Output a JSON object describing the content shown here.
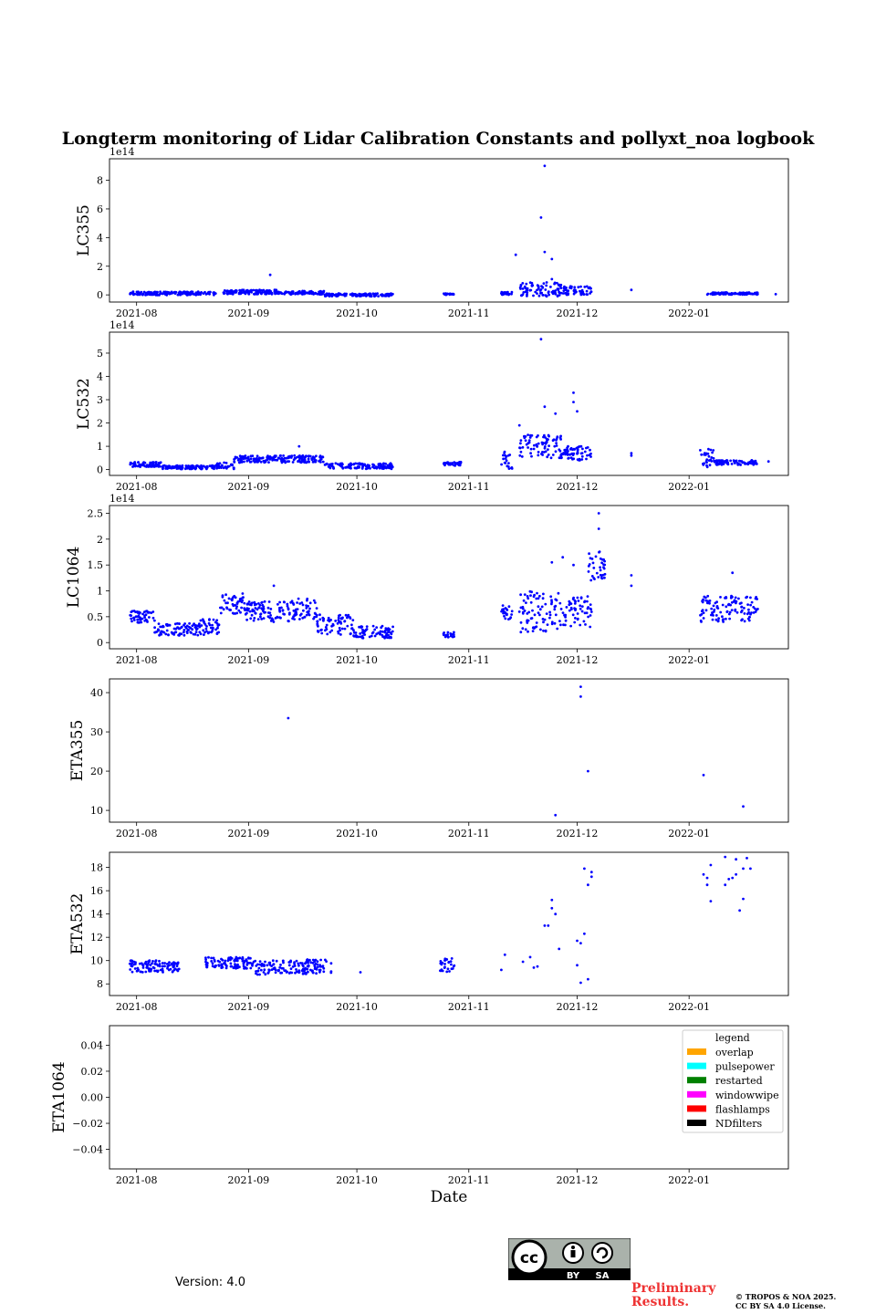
{
  "figure": {
    "title": "Longterm monitoring of Lidar Calibration Constants and pollyxt_noa logbook",
    "xlabel": "Date",
    "version": "Version: 4.0",
    "preliminary": "Preliminary Results.",
    "copyright_line1": "© TROPOS & NOA 2025.",
    "copyright_line2": "CC BY SA 4.0 License.",
    "cc_by": "BY",
    "cc_sa": "SA",
    "cc_text": "cc"
  },
  "colors": {
    "points": "#0000ff",
    "axis": "#000000"
  },
  "chart_data": [
    {
      "type": "scatter",
      "ylabel": "LC355",
      "offset_text": "1e14",
      "x_ticks": [
        "2021-08",
        "2021-09",
        "2021-10",
        "2021-11",
        "2021-12",
        "2022-01"
      ],
      "y_ticks": [
        0,
        2,
        4,
        6,
        8
      ],
      "ylim": [
        -0.5,
        9.5
      ],
      "segments": [
        {
          "start": -2,
          "end": 22,
          "level": 0.1,
          "noise": 0.12
        },
        {
          "start": 24,
          "end": 40,
          "level": 0.2,
          "noise": 0.15
        },
        {
          "start": 40,
          "end": 52,
          "level": 0.15,
          "noise": 0.12
        },
        {
          "start": 52,
          "end": 71,
          "level": 0.0,
          "noise": 0.1
        },
        {
          "start": 85,
          "end": 88,
          "level": 0.05,
          "noise": 0.05
        },
        {
          "start": 101,
          "end": 104,
          "level": 0.1,
          "noise": 0.1
        },
        {
          "start": 106,
          "end": 118,
          "level": 0.4,
          "noise": 0.5
        },
        {
          "start": 118,
          "end": 126,
          "level": 0.3,
          "noise": 0.3
        },
        {
          "start": 158,
          "end": 172,
          "level": 0.1,
          "noise": 0.08
        }
      ],
      "extra_points": [
        [
          37,
          1.4
        ],
        [
          105,
          2.8
        ],
        [
          112,
          5.4
        ],
        [
          113,
          3.0
        ],
        [
          115,
          2.5
        ],
        [
          113,
          9.0
        ],
        [
          115,
          1.1
        ],
        [
          137,
          0.35
        ],
        [
          177,
          0.05
        ]
      ]
    },
    {
      "type": "scatter",
      "ylabel": "LC532",
      "offset_text": "1e14",
      "x_ticks": [
        "2021-08",
        "2021-09",
        "2021-10",
        "2021-11",
        "2021-12",
        "2022-01"
      ],
      "y_ticks": [
        0,
        1,
        2,
        3,
        4,
        5
      ],
      "ylim": [
        -0.25,
        5.9
      ],
      "segments": [
        {
          "start": -2,
          "end": 7,
          "level": 0.22,
          "noise": 0.1
        },
        {
          "start": 7,
          "end": 22,
          "level": 0.1,
          "noise": 0.08
        },
        {
          "start": 22,
          "end": 27,
          "level": 0.15,
          "noise": 0.15
        },
        {
          "start": 27,
          "end": 52,
          "level": 0.45,
          "noise": 0.15
        },
        {
          "start": 52,
          "end": 71,
          "level": 0.15,
          "noise": 0.12
        },
        {
          "start": 85,
          "end": 90,
          "level": 0.25,
          "noise": 0.08
        },
        {
          "start": 101,
          "end": 104,
          "level": 0.4,
          "noise": 0.4
        },
        {
          "start": 106,
          "end": 118,
          "level": 1.0,
          "noise": 0.5
        },
        {
          "start": 118,
          "end": 126,
          "level": 0.7,
          "noise": 0.3
        },
        {
          "start": 156,
          "end": 160,
          "level": 0.5,
          "noise": 0.4
        },
        {
          "start": 160,
          "end": 172,
          "level": 0.3,
          "noise": 0.1
        }
      ],
      "extra_points": [
        [
          112,
          5.6
        ],
        [
          113,
          2.7
        ],
        [
          116,
          2.4
        ],
        [
          106,
          1.9
        ],
        [
          121,
          3.3
        ],
        [
          121,
          2.9
        ],
        [
          122,
          2.5
        ],
        [
          137,
          0.7
        ],
        [
          137,
          0.6
        ],
        [
          45,
          1.0
        ],
        [
          175,
          0.35
        ]
      ]
    },
    {
      "type": "scatter",
      "ylabel": "LC1064",
      "offset_text": "1e14",
      "x_ticks": [
        "2021-08",
        "2021-09",
        "2021-10",
        "2021-11",
        "2021-12",
        "2022-01"
      ],
      "y_ticks": [
        0.0,
        0.5,
        1.0,
        1.5,
        2.0,
        2.5
      ],
      "ylim": [
        -0.12,
        2.65
      ],
      "segments": [
        {
          "start": -2,
          "end": 5,
          "level": 0.5,
          "noise": 0.12
        },
        {
          "start": 5,
          "end": 17,
          "level": 0.25,
          "noise": 0.12
        },
        {
          "start": 17,
          "end": 23,
          "level": 0.3,
          "noise": 0.15
        },
        {
          "start": 23,
          "end": 30,
          "level": 0.75,
          "noise": 0.2
        },
        {
          "start": 30,
          "end": 43,
          "level": 0.6,
          "noise": 0.2
        },
        {
          "start": 43,
          "end": 50,
          "level": 0.65,
          "noise": 0.2
        },
        {
          "start": 50,
          "end": 60,
          "level": 0.35,
          "noise": 0.2
        },
        {
          "start": 60,
          "end": 71,
          "level": 0.2,
          "noise": 0.12
        },
        {
          "start": 85,
          "end": 88,
          "level": 0.15,
          "noise": 0.05
        },
        {
          "start": 101,
          "end": 104,
          "level": 0.6,
          "noise": 0.15
        },
        {
          "start": 106,
          "end": 118,
          "level": 0.6,
          "noise": 0.4
        },
        {
          "start": 118,
          "end": 126,
          "level": 0.6,
          "noise": 0.3
        },
        {
          "start": 125,
          "end": 130,
          "level": 1.5,
          "noise": 0.3
        },
        {
          "start": 156,
          "end": 172,
          "level": 0.65,
          "noise": 0.25
        }
      ],
      "extra_points": [
        [
          128,
          2.5
        ],
        [
          128,
          2.2
        ],
        [
          115,
          1.55
        ],
        [
          118,
          1.65
        ],
        [
          121,
          1.5
        ],
        [
          137,
          1.3
        ],
        [
          137,
          1.1
        ],
        [
          38,
          1.1
        ],
        [
          172,
          0.65
        ],
        [
          165,
          1.35
        ]
      ]
    },
    {
      "type": "scatter",
      "ylabel": "ETA355",
      "x_ticks": [
        "2021-08",
        "2021-09",
        "2021-10",
        "2021-11",
        "2021-12",
        "2022-01"
      ],
      "y_ticks": [
        10,
        20,
        30,
        40
      ],
      "ylim": [
        7.0,
        43.5
      ],
      "points": [
        [
          42,
          33.5
        ],
        [
          116,
          8.8
        ],
        [
          123,
          39.0
        ],
        [
          123,
          41.5
        ],
        [
          125,
          20.0
        ],
        [
          157,
          19.0
        ],
        [
          168,
          11.0
        ]
      ]
    },
    {
      "type": "scatter",
      "ylabel": "ETA532",
      "x_ticks": [
        "2021-08",
        "2021-09",
        "2021-10",
        "2021-11",
        "2021-12",
        "2022-01"
      ],
      "y_ticks": [
        8,
        10,
        12,
        14,
        16,
        18
      ],
      "ylim": [
        7.0,
        19.3
      ],
      "segments": [
        {
          "start": -2,
          "end": 12,
          "level": 9.5,
          "noise": 0.5
        },
        {
          "start": 19,
          "end": 33,
          "level": 9.8,
          "noise": 0.5
        },
        {
          "start": 33,
          "end": 47,
          "level": 9.4,
          "noise": 0.6
        },
        {
          "start": 47,
          "end": 54,
          "level": 9.5,
          "noise": 0.6
        },
        {
          "start": 84,
          "end": 88,
          "level": 9.6,
          "noise": 0.6
        }
      ],
      "extra_points": [
        [
          62,
          9.0
        ],
        [
          101,
          9.2
        ],
        [
          102,
          10.5
        ],
        [
          107,
          9.9
        ],
        [
          109,
          10.3
        ],
        [
          110,
          9.4
        ],
        [
          111,
          9.5
        ],
        [
          113,
          13.0
        ],
        [
          114,
          13.0
        ],
        [
          115,
          15.2
        ],
        [
          115,
          14.5
        ],
        [
          116,
          14.0
        ],
        [
          117,
          11.0
        ],
        [
          122,
          11.7
        ],
        [
          122,
          9.6
        ],
        [
          123,
          8.1
        ],
        [
          123,
          11.5
        ],
        [
          124,
          12.3
        ],
        [
          124,
          17.9
        ],
        [
          125,
          8.4
        ],
        [
          125,
          16.5
        ],
        [
          126,
          17.6
        ],
        [
          126,
          17.2
        ],
        [
          157,
          17.4
        ],
        [
          158,
          16.5
        ],
        [
          158,
          17.1
        ],
        [
          159,
          15.1
        ],
        [
          159,
          18.2
        ],
        [
          163,
          16.5
        ],
        [
          163,
          18.9
        ],
        [
          164,
          17.0
        ],
        [
          165,
          17.1
        ],
        [
          166,
          18.7
        ],
        [
          166,
          17.4
        ],
        [
          167,
          14.3
        ],
        [
          168,
          17.9
        ],
        [
          168,
          15.3
        ],
        [
          169,
          18.8
        ],
        [
          170,
          17.9
        ]
      ]
    },
    {
      "type": "scatter",
      "ylabel": "ETA1064",
      "x_ticks": [
        "2021-08",
        "2021-09",
        "2021-10",
        "2021-11",
        "2021-12",
        "2022-01"
      ],
      "y_ticks": [
        -0.04,
        -0.02,
        0.0,
        0.02,
        0.04
      ],
      "y_tick_labels": [
        "−0.04",
        "−0.02",
        "0.00",
        "0.02",
        "0.04"
      ],
      "ylim": [
        -0.055,
        0.055
      ],
      "points": [],
      "legend": {
        "title": "legend",
        "entries": [
          {
            "label": "overlap",
            "color": "#ffa500"
          },
          {
            "label": "pulsepower",
            "color": "#00ffff"
          },
          {
            "label": "restarted",
            "color": "#008000"
          },
          {
            "label": "windowwipe",
            "color": "#ff00ff"
          },
          {
            "label": "flashlamps",
            "color": "#ff0000"
          },
          {
            "label": "NDfilters",
            "color": "#000000"
          }
        ]
      }
    }
  ]
}
